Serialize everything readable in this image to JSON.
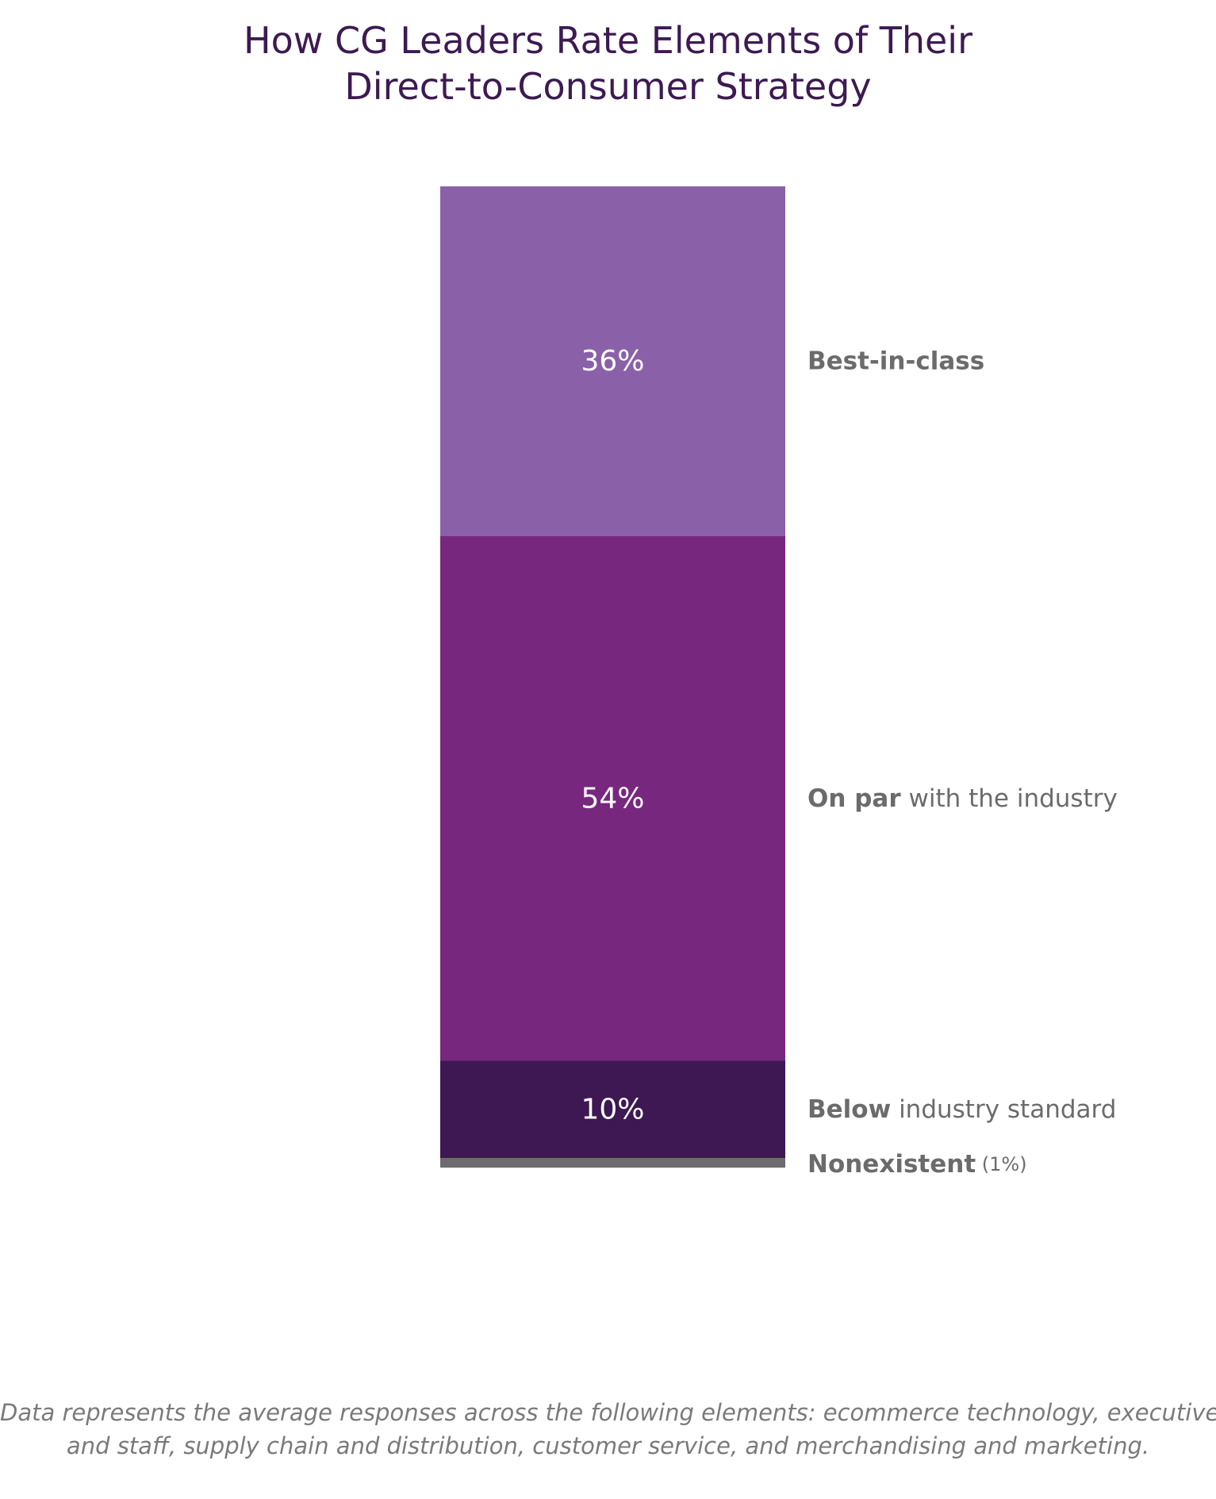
{
  "title": {
    "line1": "How CG Leaders Rate Elements of Their",
    "line2": "Direct-to-Consumer Strategy"
  },
  "footnote": {
    "line1": "Data represents the average responses across the following elements: ecommerce technology, executives",
    "line2": "and staff, supply chain and distribution, customer service, and merchandising and marketing."
  },
  "chart_data": {
    "type": "bar",
    "stacked": true,
    "title": "How CG Leaders Rate Elements of Their Direct-to-Consumer Strategy",
    "unit": "%",
    "grid": false,
    "legend": "right",
    "segments": [
      {
        "category": "Best-in-class",
        "label_bold": "Best-in-class",
        "label_rest": "",
        "value": 36,
        "value_label": "36%",
        "color": "#8a61a8"
      },
      {
        "category": "On par with the industry",
        "label_bold": "On par",
        "label_rest": " with the industry",
        "value": 54,
        "value_label": "54%",
        "color": "#78277f"
      },
      {
        "category": "Below industry standard",
        "label_bold": "Below",
        "label_rest": " industry standard",
        "value": 10,
        "value_label": "10%",
        "color": "#3e1852"
      },
      {
        "category": "Nonexistent",
        "label_bold": "Nonexistent",
        "label_rest": " (1%)",
        "value": 1,
        "value_label": "",
        "color": "#6e6b6f"
      }
    ]
  }
}
